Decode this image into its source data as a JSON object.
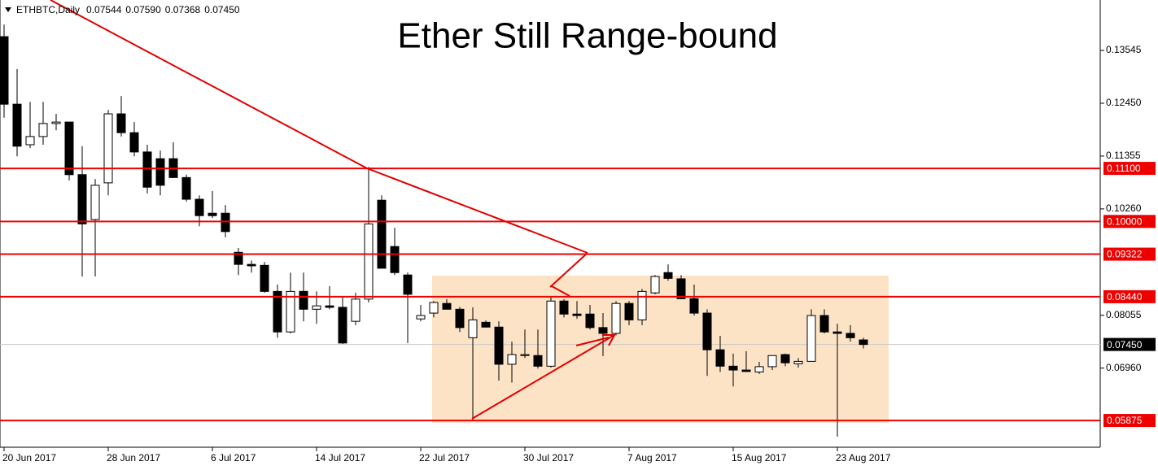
{
  "chart_data": {
    "type": "candlestick",
    "title": "Ether Still Range-bound",
    "symbol": "ETHBTC,Daily",
    "header_labels": [
      "0.07544",
      "0.07590",
      "0.07368",
      "0.07450"
    ],
    "categories": [
      "20 Jun 2017",
      null,
      null,
      null,
      null,
      null,
      null,
      null,
      "28 Jun 2017",
      null,
      null,
      null,
      null,
      null,
      null,
      null,
      "6 Jul 2017",
      null,
      null,
      null,
      null,
      null,
      null,
      null,
      "14 Jul 2017",
      null,
      null,
      null,
      null,
      null,
      null,
      null,
      "22 Jul 2017",
      null,
      null,
      null,
      null,
      null,
      null,
      null,
      "30 Jul 2017",
      null,
      null,
      null,
      null,
      null,
      null,
      null,
      "7 Aug 2017",
      null,
      null,
      null,
      null,
      null,
      null,
      null,
      "15 Aug 2017",
      null,
      null,
      null,
      null,
      null,
      null,
      null,
      "23 Aug 2017",
      null,
      null
    ],
    "open": [
      0.1383,
      0.1243,
      0.1159,
      0.1176,
      0.1203,
      0.1206,
      0.1097,
      0.1004,
      0.108,
      0.1223,
      0.1184,
      0.1144,
      0.113,
      0.113,
      0.1091,
      0.1046,
      0.1017,
      0.1017,
      0.0936,
      0.0911,
      0.0909,
      0.0855,
      0.0771,
      0.0855,
      0.0818,
      0.0825,
      0.0822,
      0.0793,
      0.0839,
      0.1044,
      0.0948,
      0.0889,
      0.0798,
      0.081,
      0.083,
      0.0818,
      0.0759,
      0.0791,
      0.0781,
      0.0704,
      0.0722,
      0.0722,
      0.07,
      0.0835,
      0.0808,
      0.0808,
      0.078,
      0.0768,
      0.083,
      0.0796,
      0.0852,
      0.0894,
      0.0881,
      0.084,
      0.081,
      0.0734,
      0.07,
      0.0692,
      0.0688,
      0.0699,
      0.0724,
      0.0705,
      0.071,
      0.0805,
      0.0771,
      0.0768,
      0.07544
    ],
    "high": [
      0.1408,
      0.1316,
      0.1248,
      0.1248,
      0.1223,
      0.1206,
      0.1156,
      0.1088,
      0.1231,
      0.126,
      0.1206,
      0.1159,
      0.1147,
      0.1164,
      0.1097,
      0.1054,
      0.1063,
      0.1034,
      0.0945,
      0.0919,
      0.0916,
      0.0869,
      0.0894,
      0.0894,
      0.0855,
      0.0866,
      0.0844,
      0.0852,
      0.1113,
      0.1054,
      0.0987,
      0.0894,
      0.0827,
      0.0835,
      0.0839,
      0.0823,
      0.0822,
      0.0795,
      0.0793,
      0.0751,
      0.0776,
      0.0776,
      0.0844,
      0.0839,
      0.0835,
      0.0827,
      0.081,
      0.0835,
      0.0835,
      0.086,
      0.0889,
      0.0911,
      0.0889,
      0.0869,
      0.0818,
      0.0763,
      0.0726,
      0.0731,
      0.0709,
      0.0722,
      0.0726,
      0.0717,
      0.0818,
      0.0818,
      0.0788,
      0.0785,
      0.0759
    ],
    "low": [
      0.1215,
      0.1135,
      0.1152,
      0.1159,
      0.1189,
      0.1085,
      0.0886,
      0.0886,
      0.1054,
      0.1176,
      0.1135,
      0.1058,
      0.1054,
      0.1091,
      0.1041,
      0.099,
      0.1007,
      0.0967,
      0.0889,
      0.0894,
      0.0852,
      0.0759,
      0.0768,
      0.0793,
      0.0788,
      0.0818,
      0.0746,
      0.0785,
      0.0832,
      0.0903,
      0.0889,
      0.0748,
      0.0793,
      0.0801,
      0.0818,
      0.0771,
      0.0587,
      0.0781,
      0.067,
      0.0666,
      0.0717,
      0.0695,
      0.0697,
      0.0801,
      0.0798,
      0.0776,
      0.0721,
      0.0764,
      0.0785,
      0.0785,
      0.0849,
      0.0877,
      0.0839,
      0.0805,
      0.068,
      0.0688,
      0.0658,
      0.0688,
      0.0684,
      0.0692,
      0.07,
      0.0697,
      0.0709,
      0.0768,
      0.0554,
      0.0751,
      0.07368
    ],
    "close": [
      0.1243,
      0.1156,
      0.1176,
      0.1203,
      0.1206,
      0.1097,
      0.0995,
      0.1075,
      0.1223,
      0.1184,
      0.1144,
      0.1071,
      0.1075,
      0.1091,
      0.1046,
      0.1012,
      0.1012,
      0.0979,
      0.0911,
      0.0908,
      0.0855,
      0.0771,
      0.0855,
      0.0818,
      0.0825,
      0.0822,
      0.0748,
      0.0839,
      0.0995,
      0.0903,
      0.0894,
      0.0849,
      0.0805,
      0.0832,
      0.0818,
      0.078,
      0.0796,
      0.0781,
      0.0704,
      0.0724,
      0.0724,
      0.07,
      0.0835,
      0.0808,
      0.0805,
      0.078,
      0.0768,
      0.083,
      0.0796,
      0.0855,
      0.0886,
      0.0882,
      0.084,
      0.081,
      0.0734,
      0.07,
      0.0692,
      0.0689,
      0.0699,
      0.0722,
      0.0707,
      0.071,
      0.0805,
      0.0771,
      0.0768,
      0.0759,
      0.0745
    ],
    "ylim": [
      0.0532,
      0.1459
    ],
    "yticks": [
      {
        "value": 0.13545,
        "label": "0.13545"
      },
      {
        "value": 0.1245,
        "label": "0.12450"
      },
      {
        "value": 0.11355,
        "label": "0.11355"
      },
      {
        "value": 0.1026,
        "label": "0.10260"
      },
      {
        "value": 0.08055,
        "label": "0.08055"
      },
      {
        "value": 0.0696,
        "label": "0.06960"
      }
    ],
    "levels": [
      {
        "value": 0.111,
        "label": "0.11100"
      },
      {
        "value": 0.1,
        "label": "0.10000"
      },
      {
        "value": 0.09322,
        "label": "0.09322"
      },
      {
        "value": 0.0844,
        "label": "0.08440"
      },
      {
        "value": 0.05875,
        "label": "0.05875"
      }
    ],
    "current": {
      "value": 0.0745,
      "label": "0.07450"
    },
    "level_color": "#ee0000"
  }
}
